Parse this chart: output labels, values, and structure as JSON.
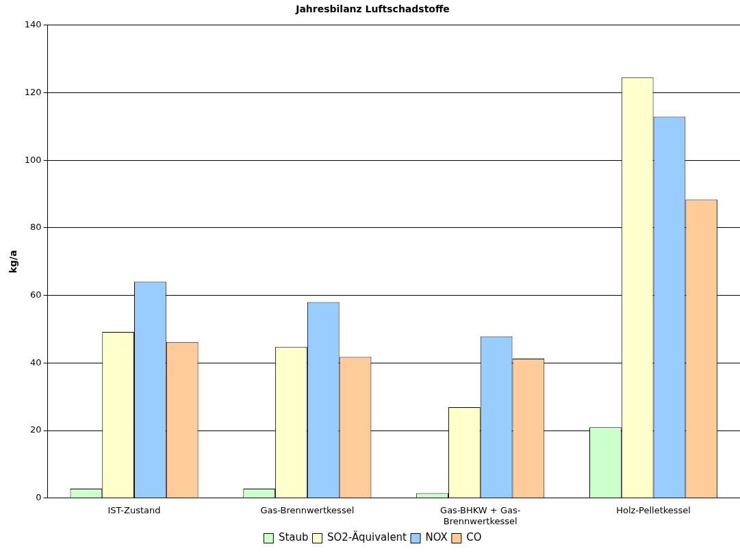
{
  "chart_data": {
    "type": "bar",
    "title": "Jahresbilanz Luftschadstoffe",
    "ylabel": "kg/a",
    "categories": [
      "IST-Zustand",
      "Gas-Brennwertkessel",
      "Gas-BHKW + Gas-Brennwertkessel",
      "Holz-Pelletkessel"
    ],
    "series": [
      {
        "name": "Staub",
        "color": "#ccffcc",
        "values": [
          2.8,
          2.8,
          1.5,
          21
        ]
      },
      {
        "name": "SO2-Äquivalent",
        "color": "#ffffcc",
        "values": [
          49.2,
          44.8,
          26.9,
          124.5
        ]
      },
      {
        "name": "NOX",
        "color": "#99ccff",
        "values": [
          64.1,
          58,
          47.9,
          112.9
        ]
      },
      {
        "name": "CO",
        "color": "#ffcc99",
        "values": [
          46.2,
          41.8,
          41.3,
          88.4
        ]
      }
    ],
    "ylim": [
      0,
      140
    ],
    "yticks": [
      0,
      20,
      40,
      60,
      80,
      100,
      120,
      140
    ],
    "grid": "y",
    "legend": "bottom"
  }
}
